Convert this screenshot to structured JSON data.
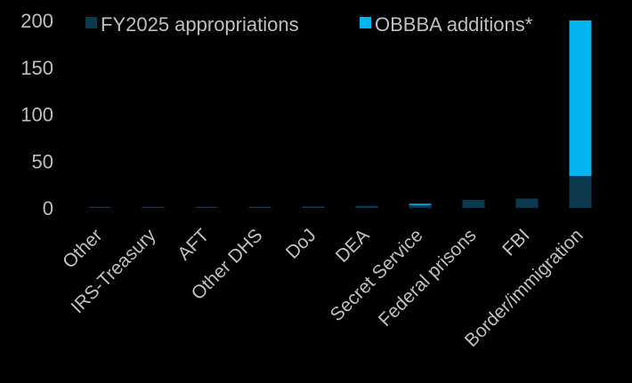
{
  "chart_data": {
    "type": "bar",
    "stacked": true,
    "categories": [
      "Other",
      "IRS-Treasury",
      "AFT",
      "Other DHS",
      "DoJ",
      "DEA",
      "Secret Service",
      "Federal prisons",
      "FBI",
      "Border/immigration"
    ],
    "series": [
      {
        "name": "FY2025 appropriations",
        "color": "#0b3a4f",
        "values": [
          0.3,
          0.6,
          1.0,
          1.2,
          1.5,
          2.2,
          3.0,
          8.5,
          10.0,
          34.0
        ]
      },
      {
        "name": "OBBBA additions*",
        "color": "#00b4f0",
        "values": [
          0,
          0,
          0,
          0,
          0,
          0,
          1.5,
          0,
          0,
          166.0
        ]
      }
    ],
    "ylim": [
      0,
      200
    ],
    "yticks": [
      "0",
      "50",
      "100",
      "150",
      "200"
    ],
    "title": "",
    "xlabel": "",
    "ylabel": "",
    "legend": "top",
    "grid": false
  }
}
